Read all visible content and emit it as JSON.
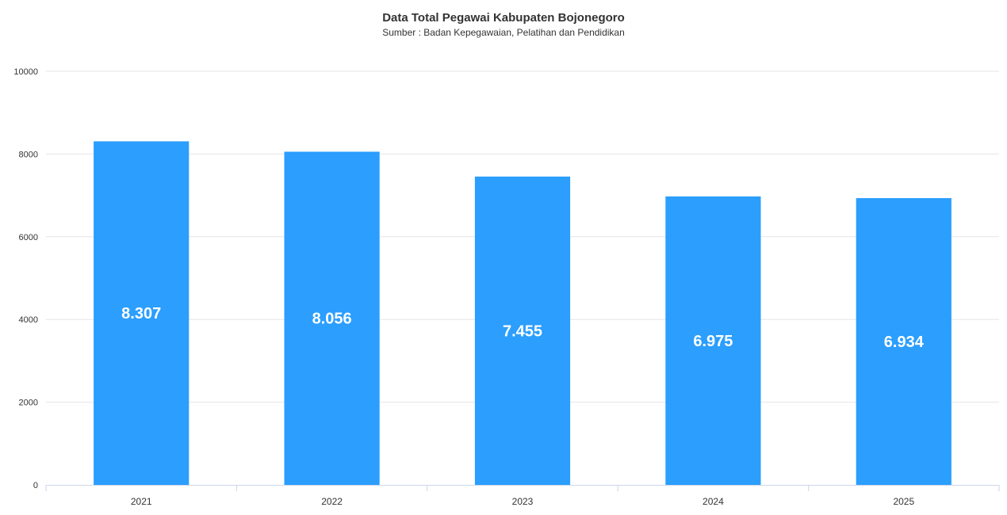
{
  "chart_data": {
    "type": "bar",
    "title": "Data Total Pegawai Kabupaten Bojonegoro",
    "subtitle": "Sumber : Badan Kepegawaian, Pelatihan dan Pendidikan",
    "categories": [
      "2021",
      "2022",
      "2023",
      "2024",
      "2025"
    ],
    "values": [
      8307,
      8056,
      7455,
      6975,
      6934
    ],
    "data_labels": [
      "8.307",
      "8.056",
      "7.455",
      "6.975",
      "6.934"
    ],
    "yticks": [
      0,
      2000,
      4000,
      6000,
      8000,
      10000
    ],
    "ylim": [
      0,
      10000
    ],
    "grid": true,
    "legend": "none",
    "bar_color": "#2b9efe",
    "label_color": "#ffffff"
  }
}
